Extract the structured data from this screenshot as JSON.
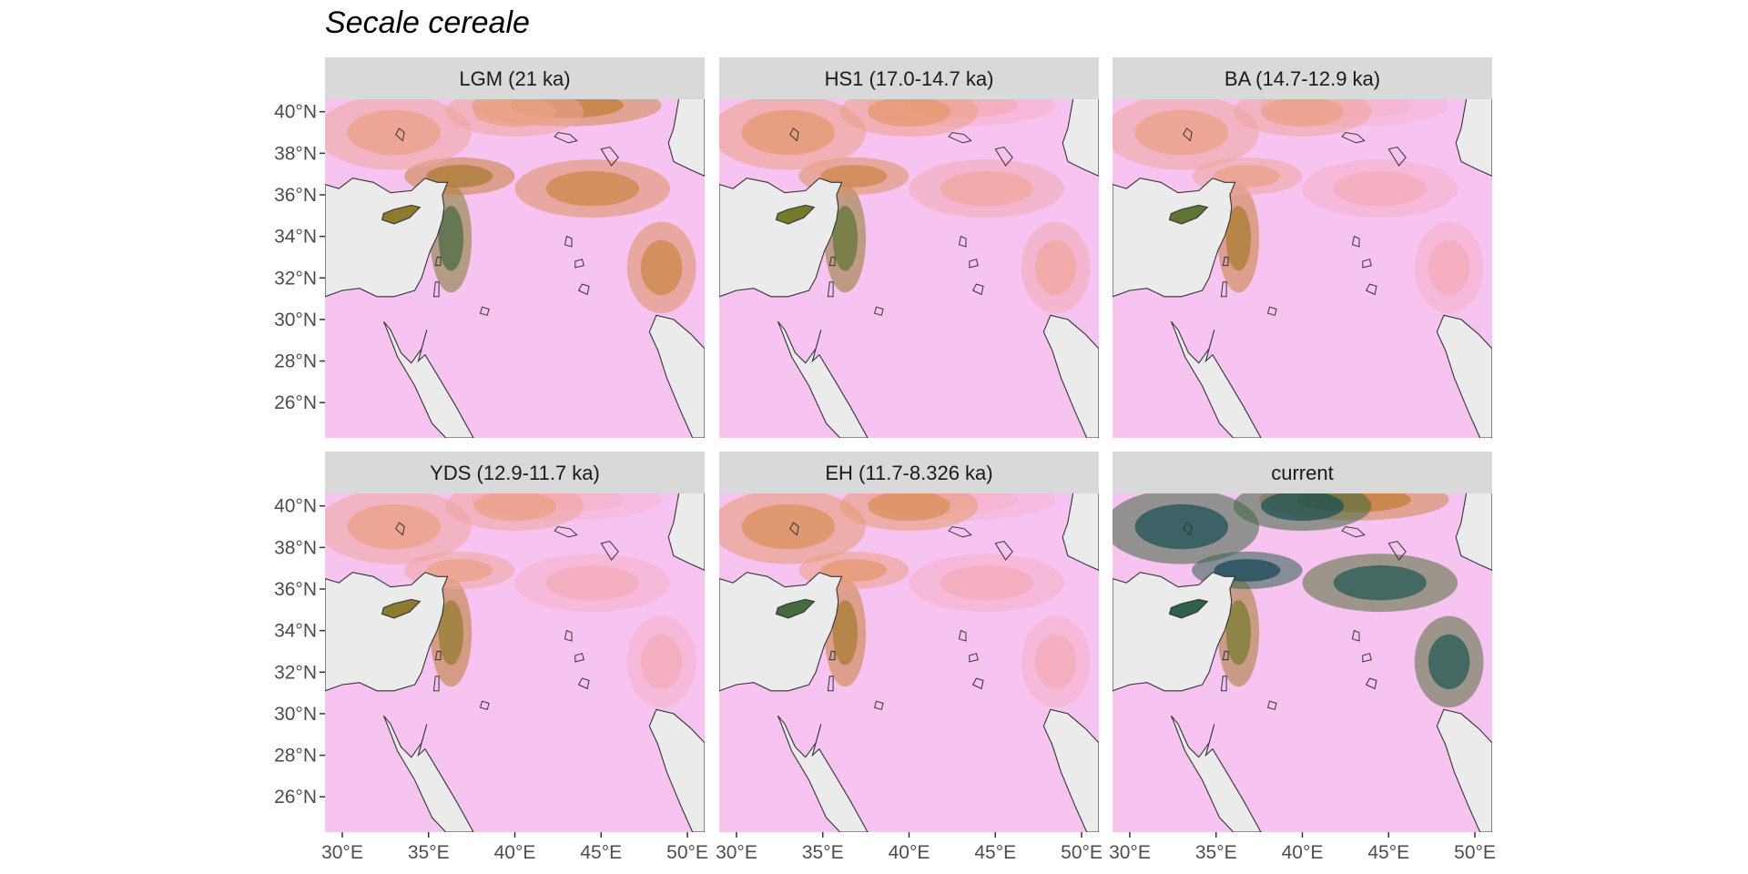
{
  "title": "Secale cereale",
  "colors": {
    "panel_background": "#ebebeb",
    "grid": "#ffffff",
    "strip_background": "#d9d9d9",
    "coast": "#333333",
    "land_palette_low_to_high": [
      "#f7c6f7",
      "#f6b0c7",
      "#e89b72",
      "#c07a2f",
      "#6d7a2a",
      "#1f5a50",
      "#0f3d55"
    ]
  },
  "axes": {
    "x_ticks": [
      "30°E",
      "35°E",
      "40°E",
      "45°E",
      "50°E"
    ],
    "x_values": [
      30,
      35,
      40,
      45,
      50
    ],
    "y_ticks": [
      "40°N",
      "38°N",
      "36°N",
      "34°N",
      "32°N",
      "30°N",
      "28°N",
      "26°N"
    ],
    "y_values": [
      40,
      38,
      36,
      34,
      32,
      30,
      28,
      26
    ],
    "x_range": [
      29,
      51
    ],
    "y_range": [
      24.3,
      40.6
    ]
  },
  "panels": [
    {
      "label": "LGM (21 ka)",
      "suitability": {
        "levant": 0.75,
        "taurus": 0.55,
        "anatolia": 0.3,
        "zagros": 0.45,
        "cyprus": 0.6,
        "caucasus": 0.5,
        "desert": 0.02
      }
    },
    {
      "label": "HS1 (17.0-14.7 ka)",
      "suitability": {
        "levant": 0.7,
        "taurus": 0.45,
        "anatolia": 0.35,
        "zagros": 0.25,
        "cyprus": 0.65,
        "caucasus": 0.2,
        "desert": 0.02
      }
    },
    {
      "label": "BA (14.7-12.9 ka)",
      "suitability": {
        "levant": 0.55,
        "taurus": 0.3,
        "anatolia": 0.3,
        "zagros": 0.2,
        "cyprus": 0.7,
        "caucasus": 0.15,
        "desert": 0.02
      }
    },
    {
      "label": "YDS (12.9-11.7 ka)",
      "suitability": {
        "levant": 0.6,
        "taurus": 0.3,
        "anatolia": 0.3,
        "zagros": 0.2,
        "cyprus": 0.6,
        "caucasus": 0.15,
        "desert": 0.02
      }
    },
    {
      "label": "EH (11.7-8.326 ka)",
      "suitability": {
        "levant": 0.55,
        "taurus": 0.35,
        "anatolia": 0.4,
        "zagros": 0.2,
        "cyprus": 0.75,
        "caucasus": 0.15,
        "desert": 0.02
      }
    },
    {
      "label": "current",
      "suitability": {
        "levant": 0.65,
        "taurus": 0.95,
        "anatolia": 0.9,
        "zagros": 0.85,
        "cyprus": 0.8,
        "caucasus": 0.5,
        "desert": 0.02
      }
    }
  ]
}
